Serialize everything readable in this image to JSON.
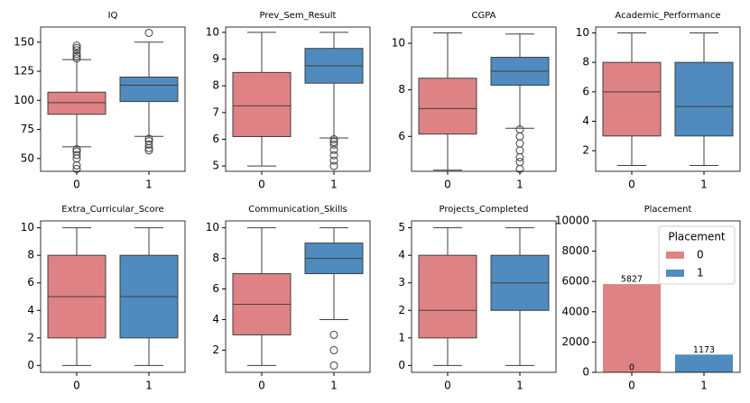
{
  "chart_data": [
    {
      "type": "box",
      "title": "IQ",
      "categories": [
        "0",
        "1"
      ],
      "colors": [
        "#df8285",
        "#4f8bbe"
      ],
      "boxes": [
        {
          "whislo": 60,
          "q1": 88,
          "med": 98,
          "q3": 107,
          "whishi": 135,
          "fliers": [
            136,
            138,
            140,
            143,
            145,
            147,
            58,
            56,
            53,
            50,
            44,
            41
          ]
        },
        {
          "whislo": 69,
          "q1": 99,
          "med": 113,
          "q3": 120,
          "whishi": 150,
          "fliers": [
            158,
            67,
            65,
            62,
            59,
            57
          ]
        }
      ],
      "ylim": [
        39,
        163
      ],
      "yticks": [
        50,
        75,
        100,
        125,
        150
      ]
    },
    {
      "type": "box",
      "title": "Prev_Sem_Result",
      "categories": [
        "0",
        "1"
      ],
      "colors": [
        "#df8285",
        "#4f8bbe"
      ],
      "boxes": [
        {
          "whislo": 5,
          "q1": 6.1,
          "med": 7.25,
          "q3": 8.5,
          "whishi": 10,
          "fliers": []
        },
        {
          "whislo": 6.05,
          "q1": 8.1,
          "med": 8.75,
          "q3": 9.4,
          "whishi": 10,
          "fliers": [
            6.0,
            5.9,
            5.8,
            5.6,
            5.4,
            5.2,
            5.0
          ]
        }
      ],
      "ylim": [
        4.8,
        10.2
      ],
      "yticks": [
        5,
        6,
        7,
        8,
        9,
        10
      ]
    },
    {
      "type": "box",
      "title": "CGPA",
      "categories": [
        "0",
        "1"
      ],
      "colors": [
        "#df8285",
        "#4f8bbe"
      ],
      "boxes": [
        {
          "whislo": 4.55,
          "q1": 6.1,
          "med": 7.2,
          "q3": 8.5,
          "whishi": 10.45,
          "fliers": []
        },
        {
          "whislo": 6.35,
          "q1": 8.2,
          "med": 8.8,
          "q3": 9.4,
          "whishi": 10.4,
          "fliers": [
            6.3,
            6.0,
            5.7,
            5.4,
            5.1,
            4.9,
            4.6
          ]
        }
      ],
      "ylim": [
        4.5,
        10.7
      ],
      "yticks": [
        6,
        8,
        10
      ]
    },
    {
      "type": "box",
      "title": "Academic_Performance",
      "categories": [
        "0",
        "1"
      ],
      "colors": [
        "#df8285",
        "#4f8bbe"
      ],
      "boxes": [
        {
          "whislo": 1,
          "q1": 3,
          "med": 6,
          "q3": 8,
          "whishi": 10,
          "fliers": []
        },
        {
          "whislo": 1,
          "q1": 3,
          "med": 5,
          "q3": 8,
          "whishi": 10,
          "fliers": []
        }
      ],
      "ylim": [
        0.6,
        10.4
      ],
      "yticks": [
        2,
        4,
        6,
        8,
        10
      ]
    },
    {
      "type": "box",
      "title": "Extra_Curricular_Score",
      "categories": [
        "0",
        "1"
      ],
      "colors": [
        "#df8285",
        "#4f8bbe"
      ],
      "boxes": [
        {
          "whislo": 0,
          "q1": 2,
          "med": 5,
          "q3": 8,
          "whishi": 10,
          "fliers": []
        },
        {
          "whislo": 0,
          "q1": 2,
          "med": 5,
          "q3": 8,
          "whishi": 10,
          "fliers": []
        }
      ],
      "ylim": [
        -0.5,
        10.5
      ],
      "yticks": [
        0,
        2,
        4,
        6,
        8,
        10
      ]
    },
    {
      "type": "box",
      "title": "Communication_Skills",
      "categories": [
        "0",
        "1"
      ],
      "colors": [
        "#df8285",
        "#4f8bbe"
      ],
      "boxes": [
        {
          "whislo": 1,
          "q1": 3,
          "med": 5,
          "q3": 7,
          "whishi": 10,
          "fliers": []
        },
        {
          "whislo": 4,
          "q1": 7,
          "med": 8,
          "q3": 9,
          "whishi": 10,
          "fliers": [
            3,
            2,
            1
          ]
        }
      ],
      "ylim": [
        0.55,
        10.45
      ],
      "yticks": [
        2,
        4,
        6,
        8,
        10
      ]
    },
    {
      "type": "box",
      "title": "Projects_Completed",
      "categories": [
        "0",
        "1"
      ],
      "colors": [
        "#df8285",
        "#4f8bbe"
      ],
      "boxes": [
        {
          "whislo": 0,
          "q1": 1,
          "med": 2,
          "q3": 4,
          "whishi": 5,
          "fliers": []
        },
        {
          "whislo": 0,
          "q1": 2,
          "med": 3,
          "q3": 4,
          "whishi": 5,
          "fliers": []
        }
      ],
      "ylim": [
        -0.25,
        5.25
      ],
      "yticks": [
        0,
        1,
        2,
        3,
        4,
        5
      ]
    },
    {
      "type": "bar",
      "title": "Placement",
      "categories": [
        "0",
        "1"
      ],
      "series": [
        {
          "name": "0",
          "color": "#df8285",
          "values": [
            5827,
            null
          ],
          "value_labels": [
            "5827",
            null
          ]
        },
        {
          "name": "1",
          "color": "#4f8bbe",
          "values": [
            0,
            1173
          ],
          "value_labels": [
            "0",
            "1173"
          ]
        }
      ],
      "legend_title": "Placement",
      "legend": "upper right",
      "ylim": [
        0,
        10000
      ],
      "yticks": [
        0,
        2000,
        4000,
        6000,
        8000,
        10000
      ]
    }
  ]
}
